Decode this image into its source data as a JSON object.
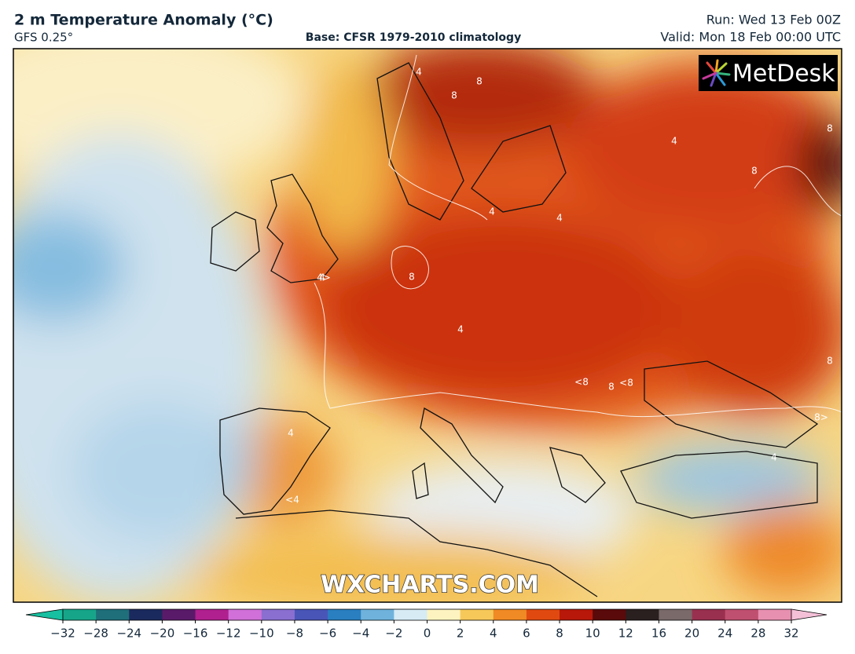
{
  "header": {
    "title": "2 m Temperature Anomaly (°C)",
    "model": "GFS 0.25°",
    "base": "Base: CFSR 1979-2010 climatology",
    "run": "Run: Wed 13 Feb 00Z",
    "valid": "Valid: Mon 18 Feb 00:00 UTC"
  },
  "map": {
    "logo": "MetDesk",
    "watermark": "WXCHARTS.COM",
    "contour_labels": [
      "8",
      "8",
      "4",
      "8",
      "8",
      "8",
      "<8",
      "8",
      "<8",
      "8",
      "4",
      "4",
      "4",
      "4",
      "4",
      "4",
      "<4",
      "4>",
      "8>",
      "4"
    ]
  },
  "colorbar": {
    "ticks": [
      {
        "value": -32,
        "label": "−32"
      },
      {
        "value": -28,
        "label": "−28"
      },
      {
        "value": -24,
        "label": "−24"
      },
      {
        "value": -20,
        "label": "−20"
      },
      {
        "value": -16,
        "label": "−16"
      },
      {
        "value": -12,
        "label": "−12"
      },
      {
        "value": -10,
        "label": "−10"
      },
      {
        "value": -8,
        "label": "−8"
      },
      {
        "value": -6,
        "label": "−6"
      },
      {
        "value": -4,
        "label": "−4"
      },
      {
        "value": -2,
        "label": "−2"
      },
      0,
      2,
      4,
      6,
      8,
      10,
      12,
      16,
      20,
      24,
      28,
      32
    ],
    "colors": [
      "#17a589",
      "#1f6f7a",
      "#1b2a5e",
      "#5a1a6a",
      "#b0208f",
      "#d070d8",
      "#8a6fd0",
      "#4a55b8",
      "#2a7fc0",
      "#6fb3dc",
      "#d6ebf4",
      "#fdf3c0",
      "#f6c85a",
      "#f08a24",
      "#e04a10",
      "#b8180a",
      "#5a0a0a",
      "#2a2020",
      "#7a6a6a",
      "#9a3050",
      "#c05070",
      "#e890b0"
    ],
    "under_color": "#17c0a0",
    "over_color": "#f4c0d8"
  }
}
